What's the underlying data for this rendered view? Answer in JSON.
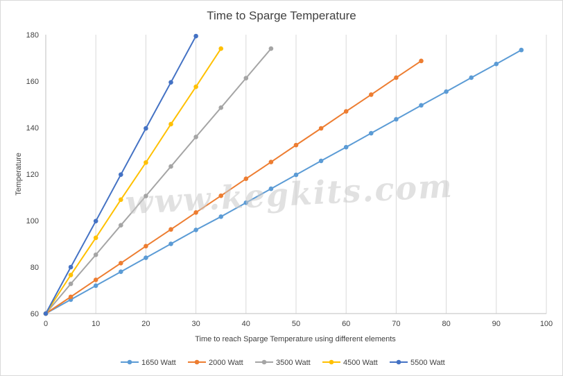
{
  "chart_data": {
    "type": "line",
    "title": "Time to Sparge Temperature",
    "xlabel": "Time to reach Sparge Temperature  using different elements",
    "ylabel": "Temperature",
    "xlim": [
      0,
      100
    ],
    "ylim": [
      60,
      180
    ],
    "xticks": [
      "0",
      "10",
      "20",
      "30",
      "40",
      "50",
      "60",
      "70",
      "80",
      "90",
      "100"
    ],
    "yticks": [
      "60",
      "80",
      "100",
      "120",
      "140",
      "160",
      "180"
    ],
    "grid": "vertical",
    "legend_position": "bottom",
    "watermark": "www.kegkits.com",
    "series": [
      {
        "name": "1650 Watt",
        "color": "#5B9BD5",
        "x": [
          0,
          5,
          10,
          15,
          20,
          25,
          30,
          35,
          40,
          45,
          50,
          55,
          60,
          65,
          70,
          75,
          80,
          85,
          90,
          95
        ],
        "y": [
          60,
          66,
          72,
          78,
          84,
          90,
          96,
          101.7,
          107.7,
          113.7,
          119.7,
          125.7,
          131.6,
          137.6,
          143.6,
          149.6,
          155.5,
          161.5,
          167.4,
          173.4
        ]
      },
      {
        "name": "2000 Watt",
        "color": "#ED7D31",
        "x": [
          0,
          5,
          10,
          15,
          20,
          25,
          30,
          35,
          40,
          45,
          50,
          55,
          60,
          65,
          70,
          75
        ],
        "y": [
          60,
          67.2,
          74.5,
          81.7,
          89,
          96.2,
          103.5,
          110.7,
          118,
          125.2,
          132.5,
          139.7,
          147,
          154.2,
          161.5,
          168.7
        ]
      },
      {
        "name": "3500 Watt",
        "color": "#A5A5A5",
        "x": [
          0,
          5,
          10,
          15,
          20,
          25,
          30,
          35,
          40,
          45
        ],
        "y": [
          60,
          72.8,
          85.3,
          98,
          110.6,
          123.3,
          136,
          148.6,
          161.3,
          174
        ]
      },
      {
        "name": "4500 Watt",
        "color": "#FFC000",
        "x": [
          0,
          5,
          10,
          15,
          20,
          25,
          30,
          35
        ],
        "y": [
          60,
          76.6,
          92.6,
          109,
          125,
          141.5,
          157.6,
          174
        ]
      },
      {
        "name": "5500 Watt",
        "color": "#4472C4",
        "x": [
          0,
          5,
          10,
          15,
          20,
          25,
          30
        ],
        "y": [
          60,
          80,
          99.8,
          119.8,
          139.7,
          159.5,
          179.4
        ]
      }
    ]
  },
  "colors": {
    "gridline": "#d9d9d9",
    "axis": "#bfbfbf",
    "text": "#404040",
    "border": "#d9d9d9"
  }
}
